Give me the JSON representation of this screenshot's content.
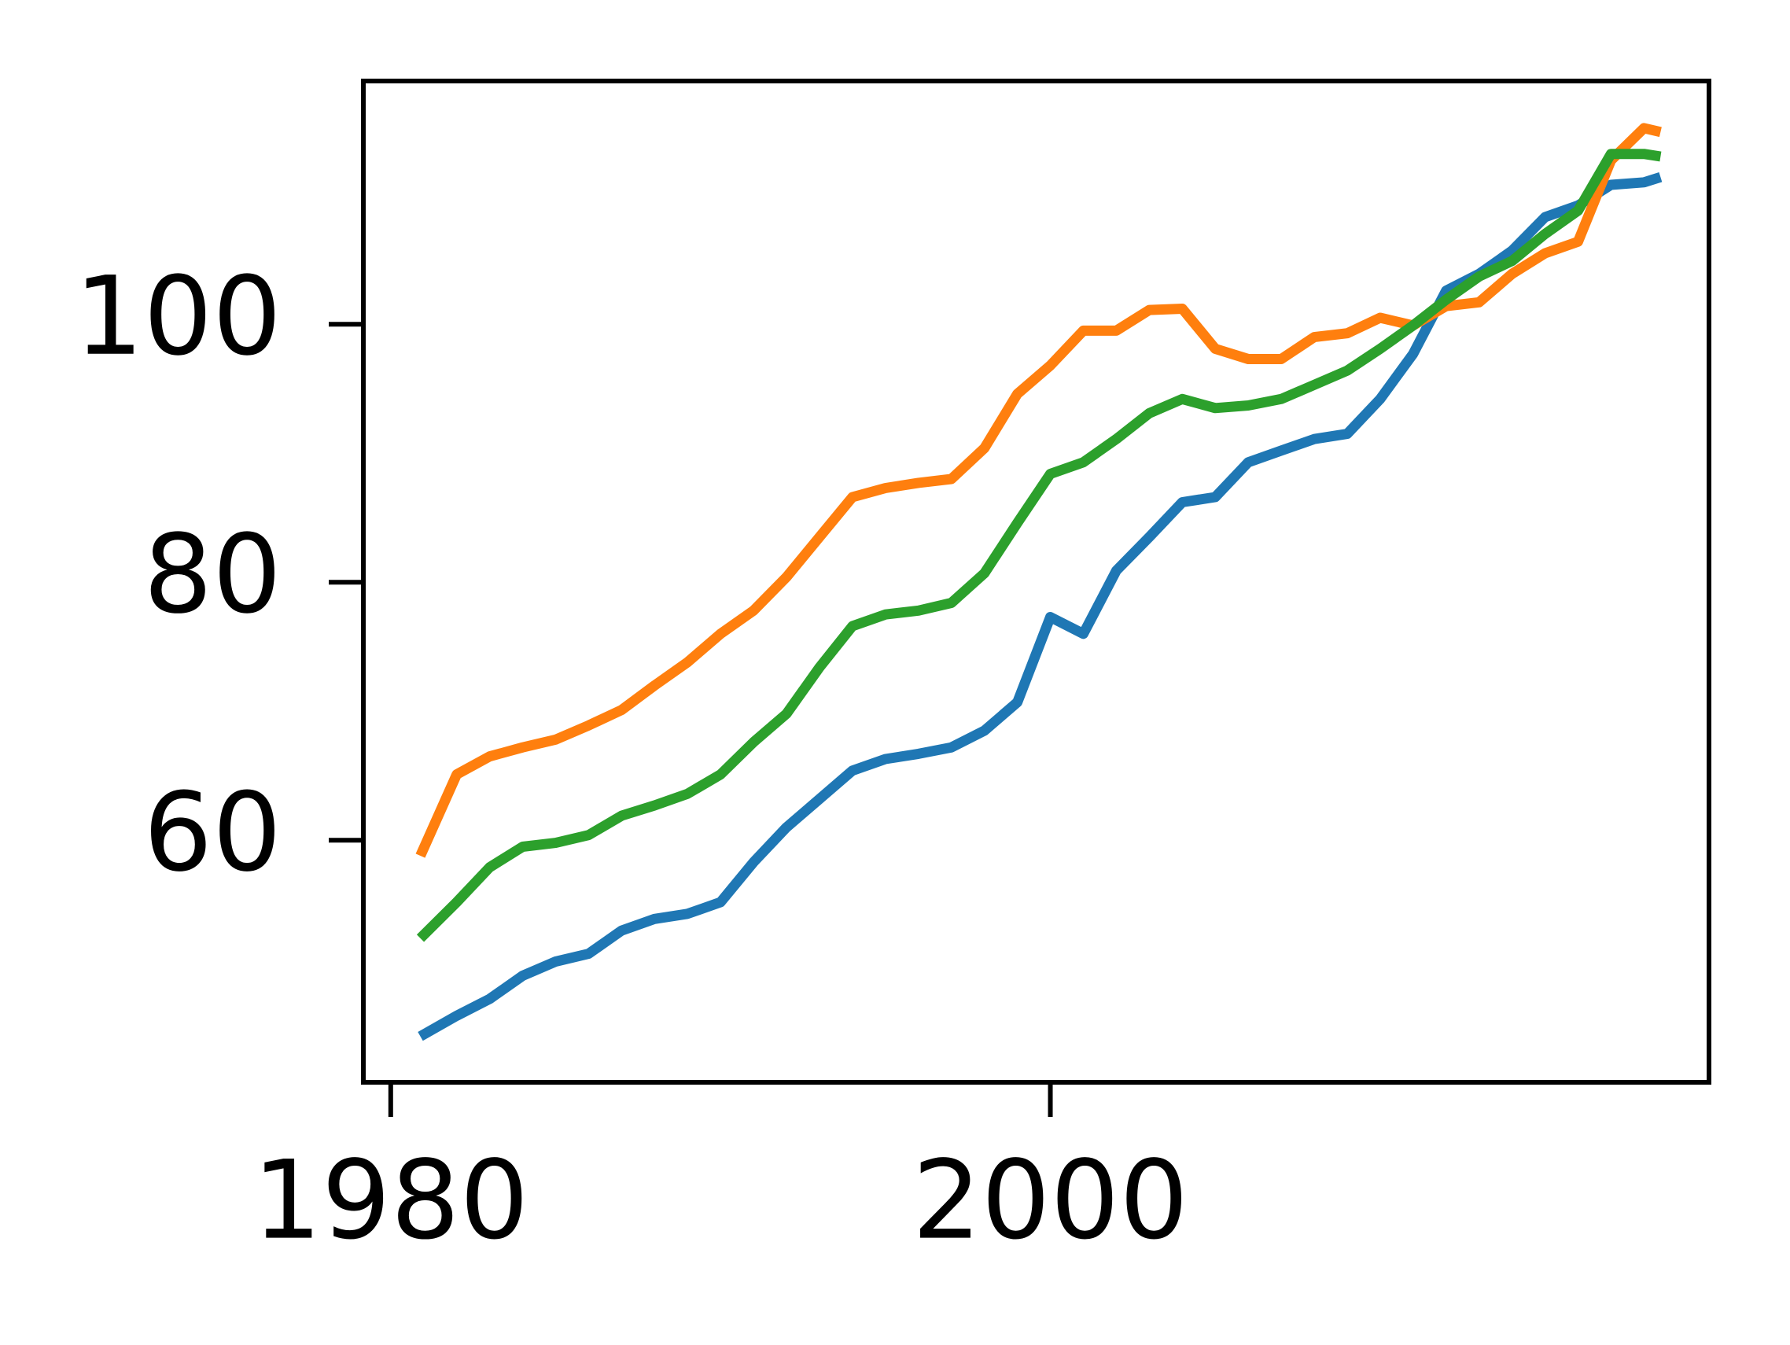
{
  "chart_data": {
    "type": "line",
    "x": [
      1980.9,
      1982,
      1983,
      1984,
      1985,
      1986,
      1987,
      1988,
      1989,
      1990,
      1991,
      1992,
      1993,
      1994,
      1995,
      1996,
      1997,
      1998,
      1999,
      2000,
      2001,
      2002,
      2003,
      2004,
      2005,
      2006,
      2007,
      2008,
      2009,
      2010,
      2011,
      2012,
      2013,
      2014,
      2015,
      2016,
      2017,
      2018,
      2018.5
    ],
    "series": [
      {
        "color": "#1f77b4",
        "values": [
          44.8,
          46.4,
          47.7,
          49.5,
          50.6,
          51.2,
          53.0,
          53.9,
          54.3,
          55.2,
          58.3,
          61.0,
          63.2,
          65.4,
          66.3,
          66.7,
          67.2,
          68.5,
          70.7,
          77.3,
          76.0,
          80.9,
          83.5,
          86.2,
          86.6,
          89.3,
          90.2,
          91.1,
          91.5,
          94.2,
          97.7,
          102.6,
          103.9,
          105.7,
          108.3,
          109.2,
          110.8,
          111.0,
          111.4
        ]
      },
      {
        "color": "#ff7f0e",
        "values": [
          58.8,
          65.1,
          66.5,
          67.2,
          67.8,
          68.9,
          70.1,
          72.0,
          73.8,
          76.0,
          77.8,
          80.4,
          83.5,
          86.6,
          87.3,
          87.7,
          88.0,
          90.4,
          94.6,
          96.8,
          99.5,
          99.5,
          101.1,
          101.2,
          98.1,
          97.3,
          97.3,
          99.0,
          99.3,
          100.5,
          99.9,
          101.4,
          101.7,
          103.9,
          105.5,
          106.4,
          112.7,
          115.2,
          114.9
        ]
      },
      {
        "color": "#2ca02c",
        "values": [
          52.4,
          55.2,
          57.9,
          59.5,
          59.8,
          60.4,
          61.9,
          62.7,
          63.6,
          65.1,
          67.6,
          69.8,
          73.4,
          76.6,
          77.5,
          77.8,
          78.4,
          80.7,
          84.6,
          88.4,
          89.3,
          91.1,
          93.1,
          94.2,
          93.5,
          93.7,
          94.2,
          95.3,
          96.4,
          98.1,
          99.9,
          101.9,
          103.7,
          104.9,
          107.0,
          108.8,
          113.2,
          113.2,
          113.0
        ]
      }
    ],
    "xlim": [
      1979.17,
      2019.97
    ],
    "xticks": [
      1980,
      2000
    ],
    "ylim": [
      41.24,
      118.85
    ],
    "yticks": [
      60,
      80,
      100
    ]
  }
}
